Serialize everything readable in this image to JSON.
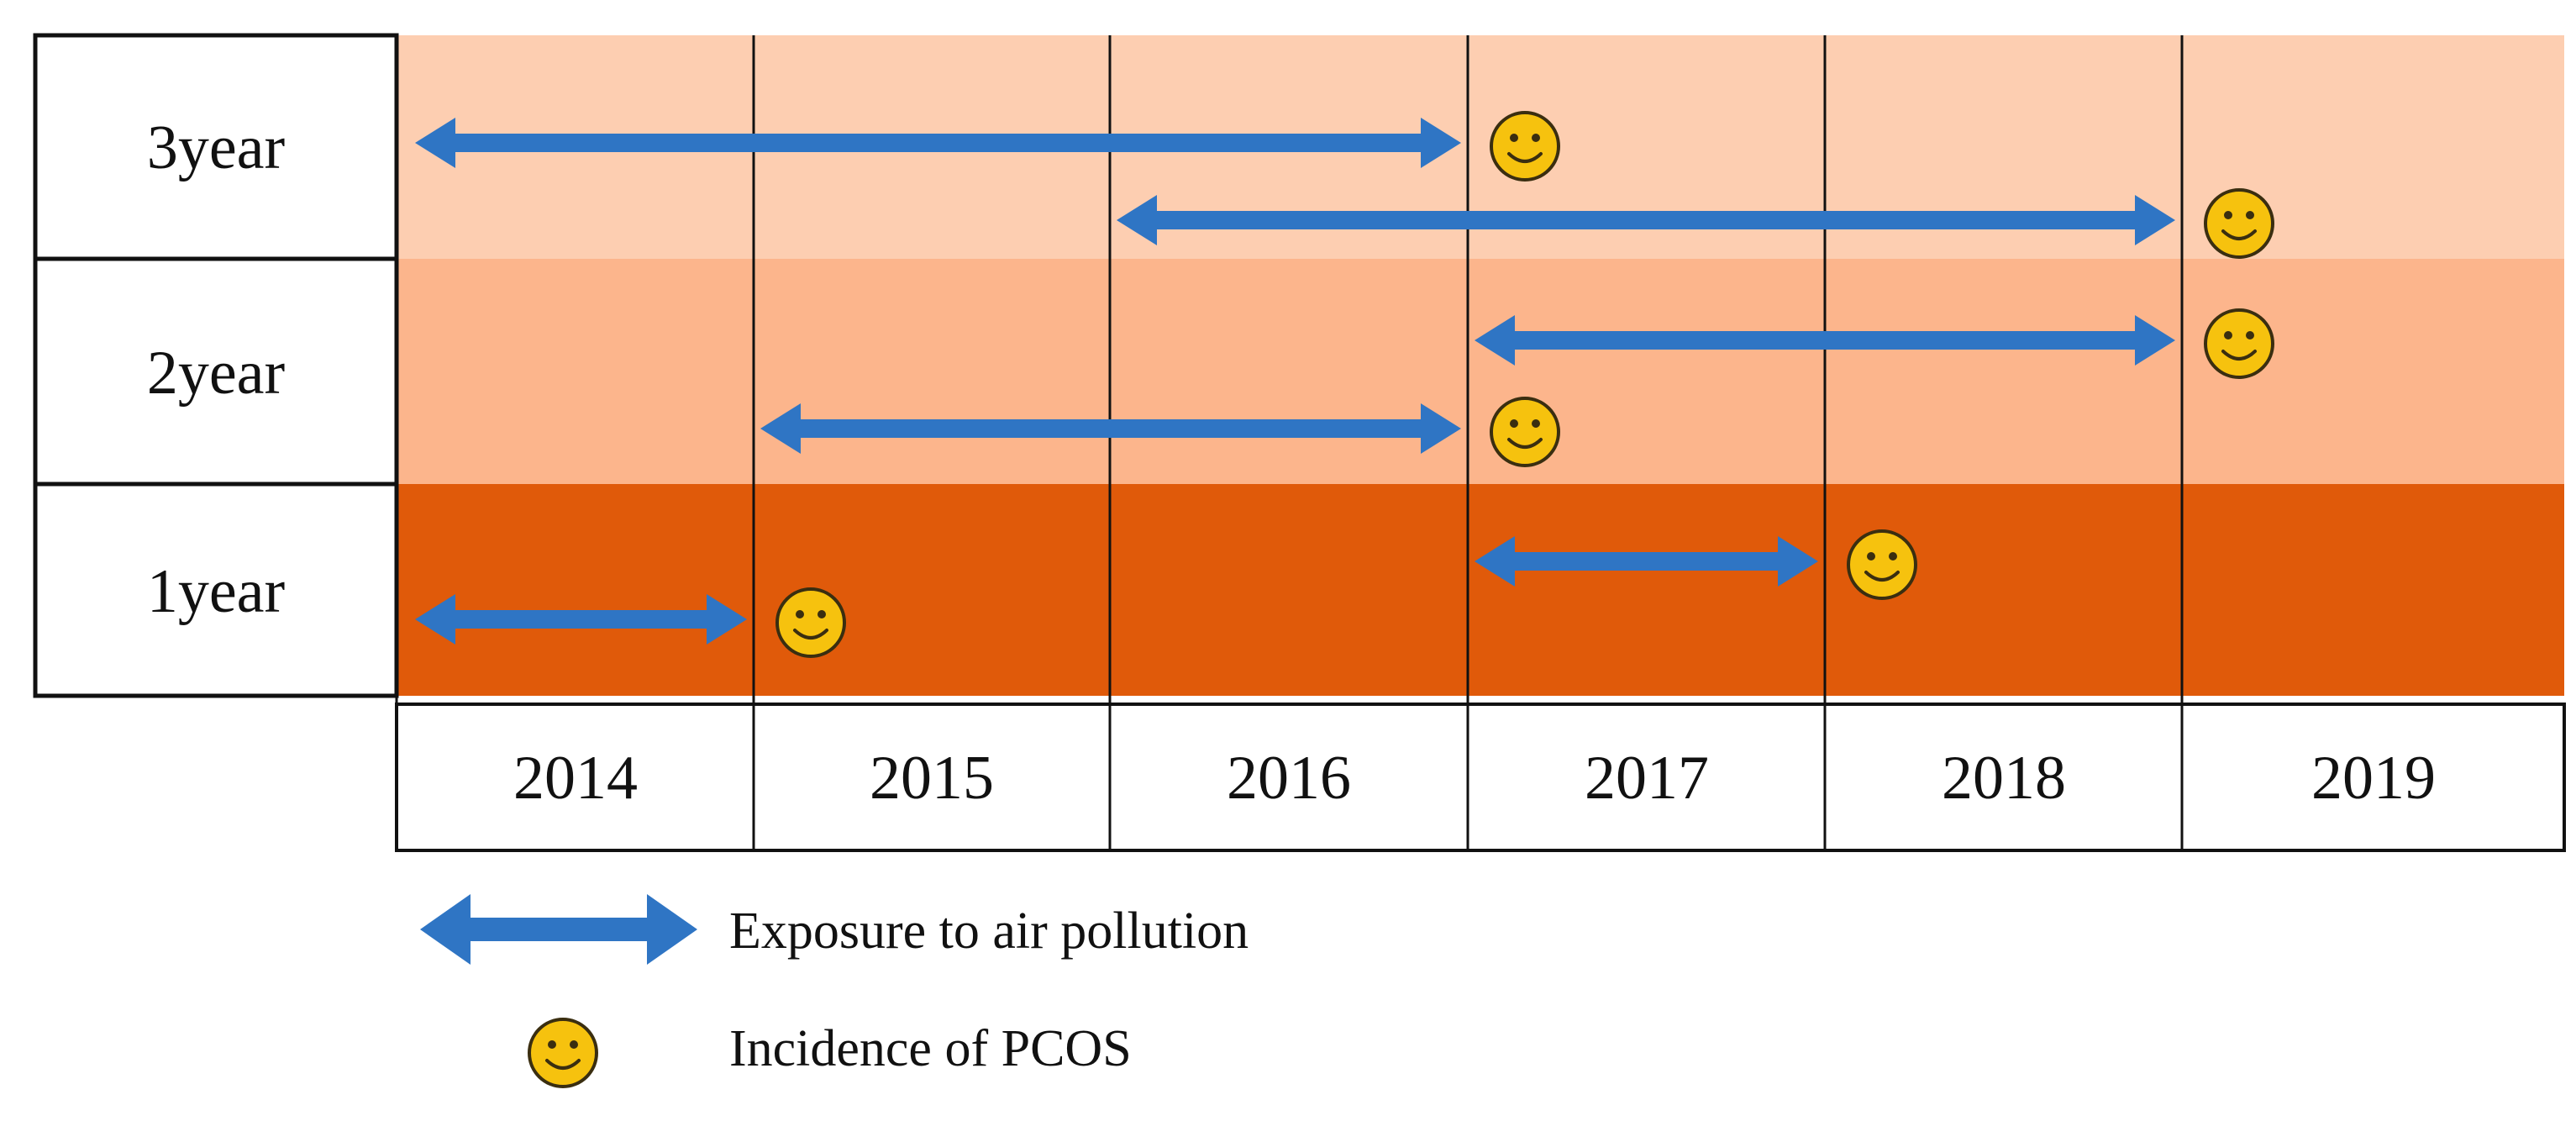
{
  "colors": {
    "band_3year": "#FDCEB1",
    "band_2year": "#FCB58C",
    "band_1year": "#E05A0A",
    "arrow": "#2F75C4",
    "face_fill": "#F6C20E",
    "face_stroke": "#3A2E10",
    "grid": "#111111",
    "label_box": "#FFFFFF"
  },
  "rows": [
    {
      "id": "3year",
      "label": "3year",
      "color_key": "band_3year"
    },
    {
      "id": "2year",
      "label": "2year",
      "color_key": "band_2year"
    },
    {
      "id": "1year",
      "label": "1year",
      "color_key": "band_1year"
    }
  ],
  "years": [
    "2014",
    "2015",
    "2016",
    "2017",
    "2018",
    "2019"
  ],
  "exposures": [
    {
      "row": "3year",
      "lane": 0,
      "from": "2014",
      "to": "2017",
      "pcos_year": "2017"
    },
    {
      "row": "3year",
      "lane": 1,
      "from": "2016",
      "to": "2019",
      "pcos_year": "2019"
    },
    {
      "row": "2year",
      "lane": 0,
      "from": "2017",
      "to": "2019",
      "pcos_year": "2019"
    },
    {
      "row": "2year",
      "lane": 1,
      "from": "2015",
      "to": "2017",
      "pcos_year": "2017"
    },
    {
      "row": "1year",
      "lane": 0,
      "from": "2017",
      "to": "2018",
      "pcos_year": "2018"
    },
    {
      "row": "1year",
      "lane": 1,
      "from": "2014",
      "to": "2015",
      "pcos_year": "2015"
    }
  ],
  "legend": {
    "exposure_label": "Exposure to air pollution",
    "pcos_label": "Incidence of  PCOS"
  }
}
